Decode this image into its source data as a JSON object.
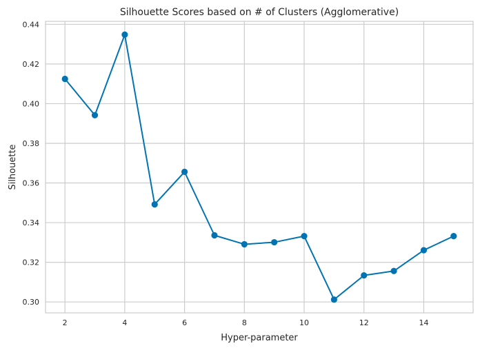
{
  "chart_data": {
    "type": "line",
    "title": "Silhouette Scores based on # of Clusters (Agglomerative)",
    "xlabel": "Hyper-parameter",
    "ylabel": "Silhouette",
    "xlim": [
      1.35,
      15.65
    ],
    "ylim": [
      0.2945,
      0.4415
    ],
    "xticks": [
      2,
      4,
      6,
      8,
      10,
      12,
      14
    ],
    "yticks": [
      0.3,
      0.32,
      0.34,
      0.36,
      0.38,
      0.4,
      0.42,
      0.44
    ],
    "grid": true,
    "series": [
      {
        "color": "#0173b2",
        "x": [
          2,
          3,
          4,
          5,
          6,
          7,
          8,
          9,
          10,
          11,
          12,
          13,
          14,
          15
        ],
        "values": [
          0.4125,
          0.3942,
          0.4348,
          0.3492,
          0.3656,
          0.3336,
          0.3291,
          0.3301,
          0.3332,
          0.3012,
          0.3134,
          0.3156,
          0.3261,
          0.3332
        ]
      }
    ]
  }
}
